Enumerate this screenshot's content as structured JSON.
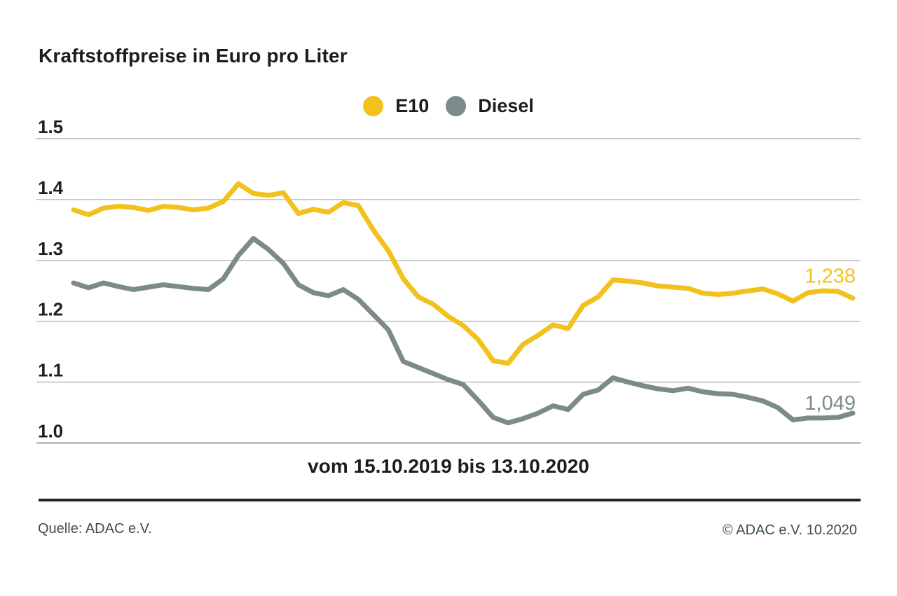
{
  "title": "Kraftstoffpreise in Euro pro Liter",
  "xaxis": {
    "range_label": "vom 15.10.2019 bis 13.10.2020"
  },
  "footer": {
    "source": "Quelle: ADAC e.V.",
    "copyright": "© ADAC e.V. 10.2020"
  },
  "colors": {
    "e10": "#F2C11C",
    "diesel": "#7B8A8B",
    "gridline": "#B3B3B3",
    "baseline": "#9D9D9D",
    "text": "#1D1D1B",
    "footer_text": "#3E4C55",
    "divider": "#18242E"
  },
  "chart_data": {
    "type": "line",
    "title": "Kraftstoffpreise in Euro pro Liter",
    "ylabel": "Euro pro Liter",
    "x_range_label": "vom 15.10.2019 bis 13.10.2020",
    "x_start_date": "15.10.2019",
    "x_end_date": "13.10.2020",
    "x_unit": "week",
    "ylim": [
      1.0,
      1.5
    ],
    "y_ticks": [
      1.5,
      1.4,
      1.3,
      1.2,
      1.1,
      1.0
    ],
    "y_tick_labels": [
      "1.5",
      "1.4",
      "1.3",
      "1.2",
      "1.1",
      "1.0"
    ],
    "grid": "horizontal",
    "legend_position": "top-center",
    "series": [
      {
        "name": "E10",
        "color": "#F2C11C",
        "end_label": "1,238",
        "end_value": 1.238,
        "values": [
          1.383,
          1.375,
          1.386,
          1.389,
          1.387,
          1.382,
          1.389,
          1.387,
          1.383,
          1.386,
          1.397,
          1.426,
          1.41,
          1.407,
          1.411,
          1.377,
          1.384,
          1.379,
          1.395,
          1.39,
          1.35,
          1.316,
          1.27,
          1.24,
          1.228,
          1.208,
          1.193,
          1.17,
          1.135,
          1.131,
          1.162,
          1.177,
          1.194,
          1.188,
          1.226,
          1.24,
          1.268,
          1.266,
          1.263,
          1.258,
          1.256,
          1.254,
          1.246,
          1.244,
          1.246,
          1.25,
          1.253,
          1.245,
          1.233,
          1.247,
          1.25,
          1.249,
          1.238
        ]
      },
      {
        "name": "Diesel",
        "color": "#7B8A8B",
        "end_label": "1,049",
        "end_value": 1.049,
        "values": [
          1.263,
          1.255,
          1.263,
          1.257,
          1.252,
          1.256,
          1.26,
          1.257,
          1.254,
          1.252,
          1.27,
          1.308,
          1.336,
          1.318,
          1.295,
          1.26,
          1.247,
          1.242,
          1.252,
          1.236,
          1.211,
          1.186,
          1.134,
          1.124,
          1.114,
          1.104,
          1.096,
          1.07,
          1.042,
          1.033,
          1.04,
          1.049,
          1.061,
          1.055,
          1.08,
          1.087,
          1.107,
          1.1,
          1.094,
          1.089,
          1.086,
          1.09,
          1.084,
          1.081,
          1.08,
          1.075,
          1.069,
          1.058,
          1.038,
          1.041,
          1.041,
          1.042,
          1.049
        ]
      }
    ]
  }
}
